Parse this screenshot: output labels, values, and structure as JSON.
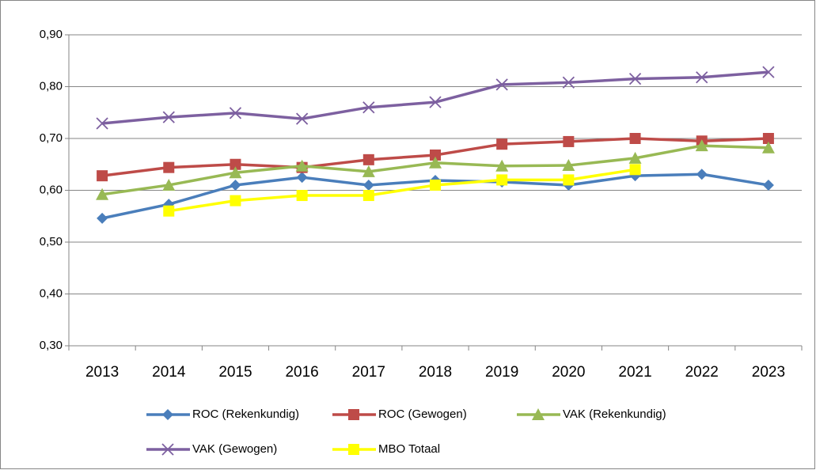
{
  "chart_data": {
    "type": "line",
    "categories": [
      "2013",
      "2014",
      "2015",
      "2016",
      "2017",
      "2018",
      "2019",
      "2020",
      "2021",
      "2022",
      "2023"
    ],
    "series": [
      {
        "name": "ROC (Rekenkundig)",
        "color": "#4a7ebb",
        "marker": "diamond",
        "values": [
          0.546,
          0.573,
          0.61,
          0.625,
          0.61,
          0.619,
          0.616,
          0.61,
          0.628,
          0.631,
          0.61
        ]
      },
      {
        "name": "ROC (Gewogen)",
        "color": "#be4b48",
        "marker": "square",
        "values": [
          0.628,
          0.644,
          0.65,
          0.644,
          0.659,
          0.668,
          0.689,
          0.694,
          0.7,
          0.695,
          0.7
        ]
      },
      {
        "name": "VAK (Rekenkundig)",
        "color": "#98b954",
        "marker": "triangle",
        "values": [
          0.592,
          0.61,
          0.634,
          0.647,
          0.636,
          0.653,
          0.647,
          0.648,
          0.662,
          0.686,
          0.682
        ]
      },
      {
        "name": "VAK (Gewogen)",
        "color": "#7d60a0",
        "marker": "x",
        "values": [
          0.729,
          0.741,
          0.749,
          0.738,
          0.76,
          0.77,
          0.804,
          0.808,
          0.815,
          0.818,
          0.828
        ]
      },
      {
        "name": "MBO Totaal",
        "color": "#ffff00",
        "marker": "square",
        "values": [
          null,
          0.56,
          0.58,
          0.59,
          0.59,
          0.61,
          0.62,
          0.62,
          0.64,
          null,
          null
        ]
      }
    ],
    "ylim": [
      0.3,
      0.9
    ],
    "yticks": [
      {
        "value": 0.3,
        "label": "0,30"
      },
      {
        "value": 0.4,
        "label": "0,40"
      },
      {
        "value": 0.5,
        "label": "0,50"
      },
      {
        "value": 0.6,
        "label": "0,60"
      },
      {
        "value": 0.7,
        "label": "0,70"
      },
      {
        "value": 0.8,
        "label": "0,80"
      },
      {
        "value": 0.9,
        "label": "0,90"
      }
    ],
    "grid": true,
    "legend": "bottom"
  }
}
